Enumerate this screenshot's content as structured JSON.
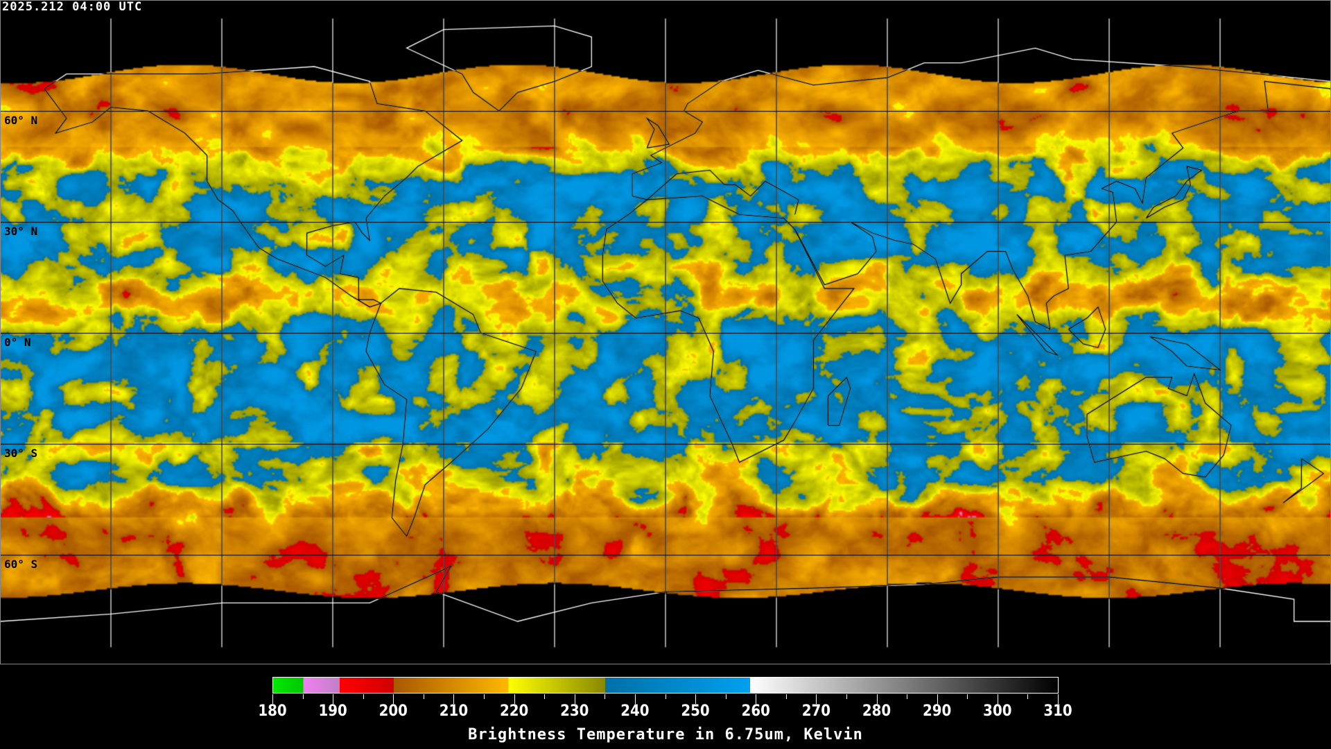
{
  "timestamp": "2025.212 04:00 UTC",
  "map": {
    "projection": "equirectangular",
    "lon_range": [
      -180,
      180
    ],
    "lat_range": [
      -90,
      90
    ],
    "grid_spacing_deg": 30,
    "lat_labels": [
      "60° N",
      "30° N",
      "0° N",
      "30° S",
      "60° S"
    ],
    "data_color_land_outline": "#000000",
    "polar_outline_color": "#ffffff"
  },
  "colorbar": {
    "title": "Brightness Temperature in 6.75um, Kelvin",
    "min": 180,
    "max": 310,
    "ticks": [
      "180",
      "190",
      "200",
      "210",
      "220",
      "230",
      "240",
      "250",
      "260",
      "270",
      "280",
      "290",
      "300",
      "310"
    ],
    "segments": [
      {
        "from": 180,
        "to": 185,
        "c0": "#00e800",
        "c1": "#00c800"
      },
      {
        "from": 185,
        "to": 191,
        "c0": "#f080f0",
        "c1": "#c080c8"
      },
      {
        "from": 191,
        "to": 200,
        "c0": "#ff0000",
        "c1": "#d00000"
      },
      {
        "from": 200,
        "to": 219,
        "c0": "#a85800",
        "c1": "#ffb800"
      },
      {
        "from": 219,
        "to": 235,
        "c0": "#ffff00",
        "c1": "#888800"
      },
      {
        "from": 235,
        "to": 259,
        "c0": "#0070a8",
        "c1": "#00a0f0"
      },
      {
        "from": 259,
        "to": 310,
        "c0": "#ffffff",
        "c1": "#000000"
      }
    ]
  }
}
